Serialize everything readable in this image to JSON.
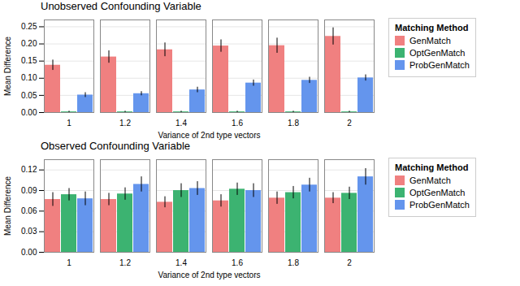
{
  "chart_data": [
    {
      "type": "bar",
      "title": "Unobserved Confounding Variable",
      "xlabel": "Variance of 2nd type vectors",
      "ylabel": "Mean Difference",
      "legend_title": "Matching Method",
      "legend": "right",
      "grid": true,
      "categories": [
        "1",
        "1.2",
        "1.4",
        "1.6",
        "1.8",
        "2"
      ],
      "series": [
        {
          "name": "GenMatch",
          "color": "#F08080",
          "values": [
            0.138,
            0.162,
            0.183,
            0.194,
            0.195,
            0.222
          ],
          "errors": [
            0.015,
            0.018,
            0.02,
            0.018,
            0.022,
            0.025
          ]
        },
        {
          "name": "OptGenMatch",
          "color": "#3CB371",
          "values": [
            0.002,
            0.002,
            0.002,
            0.002,
            0.002,
            0.002
          ],
          "errors": [
            0.002,
            0.002,
            0.002,
            0.002,
            0.002,
            0.002
          ]
        },
        {
          "name": "ProbGenMatch",
          "color": "#6495ED",
          "values": [
            0.051,
            0.055,
            0.066,
            0.086,
            0.094,
            0.101
          ],
          "errors": [
            0.007,
            0.006,
            0.008,
            0.009,
            0.009,
            0.009
          ]
        }
      ],
      "ylim": [
        0,
        0.27
      ],
      "yticks": [
        {
          "value": 0,
          "label": "0.00"
        },
        {
          "value": 0.05,
          "label": "0.05"
        },
        {
          "value": 0.1,
          "label": "0.10"
        },
        {
          "value": 0.15,
          "label": "0.15"
        },
        {
          "value": 0.2,
          "label": "0.20"
        },
        {
          "value": 0.25,
          "label": "0.25"
        }
      ]
    },
    {
      "type": "bar",
      "title": "Observed Confounding Variable",
      "xlabel": "Variance of 2nd type vectors",
      "ylabel": "Mean Difference",
      "legend_title": "Matching Method",
      "legend": "right",
      "grid": true,
      "categories": [
        "1",
        "1.2",
        "1.4",
        "1.6",
        "1.8",
        "2"
      ],
      "series": [
        {
          "name": "GenMatch",
          "color": "#F08080",
          "values": [
            0.077,
            0.077,
            0.073,
            0.075,
            0.079,
            0.079
          ],
          "errors": [
            0.01,
            0.009,
            0.008,
            0.009,
            0.009,
            0.008
          ]
        },
        {
          "name": "OptGenMatch",
          "color": "#3CB371",
          "values": [
            0.084,
            0.085,
            0.09,
            0.092,
            0.087,
            0.086
          ],
          "errors": [
            0.009,
            0.009,
            0.01,
            0.009,
            0.009,
            0.009
          ]
        },
        {
          "name": "ProbGenMatch",
          "color": "#6495ED",
          "values": [
            0.078,
            0.099,
            0.093,
            0.09,
            0.098,
            0.11
          ],
          "errors": [
            0.01,
            0.011,
            0.01,
            0.01,
            0.01,
            0.012
          ]
        }
      ],
      "ylim": [
        0,
        0.135
      ],
      "yticks": [
        {
          "value": 0,
          "label": "0.00"
        },
        {
          "value": 0.03,
          "label": "0.03"
        },
        {
          "value": 0.06,
          "label": "0.06"
        },
        {
          "value": 0.09,
          "label": "0.09"
        },
        {
          "value": 0.12,
          "label": "0.12"
        }
      ]
    }
  ]
}
